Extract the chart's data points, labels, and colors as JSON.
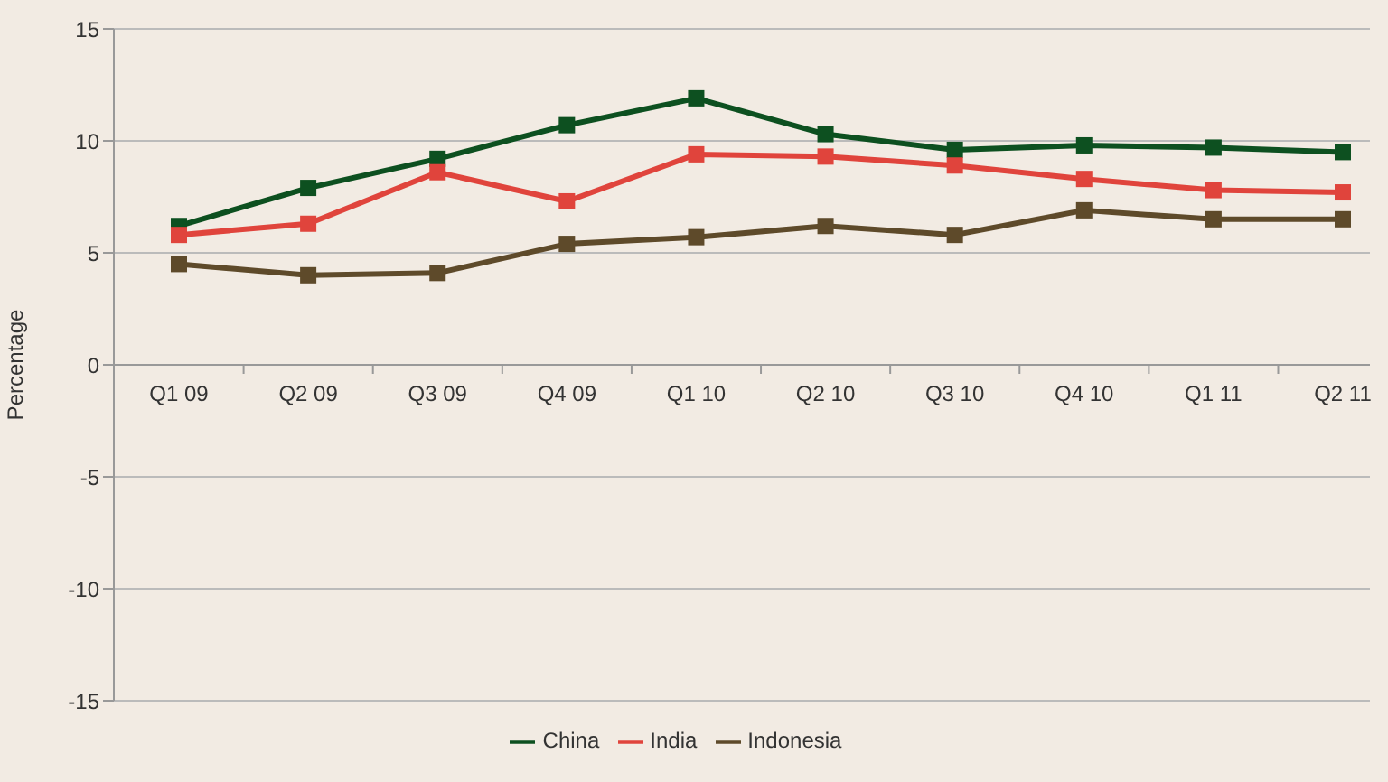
{
  "chart_data": {
    "type": "line",
    "ylabel": "Percentage",
    "categories": [
      "Q1 09",
      "Q2 09",
      "Q3 09",
      "Q4 09",
      "Q1 10",
      "Q2 10",
      "Q3 10",
      "Q4 10",
      "Q1 11",
      "Q2 11"
    ],
    "series": [
      {
        "name": "China",
        "color": "#0d5020",
        "values": [
          6.2,
          7.9,
          9.2,
          10.7,
          11.9,
          10.3,
          9.6,
          9.8,
          9.7,
          9.5
        ]
      },
      {
        "name": "India",
        "color": "#e0443c",
        "values": [
          5.8,
          6.3,
          8.6,
          7.3,
          9.4,
          9.3,
          8.9,
          8.3,
          7.8,
          7.7
        ]
      },
      {
        "name": "Indonesia",
        "color": "#5e4a2a",
        "values": [
          4.5,
          4.0,
          4.1,
          5.4,
          5.7,
          6.2,
          5.8,
          6.9,
          6.5,
          6.5
        ]
      }
    ],
    "ylim": [
      -15,
      15
    ],
    "yticks": [
      -15,
      -10,
      -5,
      0,
      5,
      10,
      15
    ],
    "grid": "y",
    "legend": "bottom",
    "marker": "square",
    "line_style": "solid"
  }
}
